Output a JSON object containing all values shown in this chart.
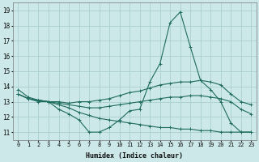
{
  "bg_color": "#cce8e8",
  "grid_color": "#aacfcf",
  "line_color": "#1e6b5e",
  "xlabel": "Humidex (Indice chaleur)",
  "ylim": [
    10.5,
    19.5
  ],
  "xlim": [
    -0.5,
    23.5
  ],
  "yticks": [
    11,
    12,
    13,
    14,
    15,
    16,
    17,
    18,
    19
  ],
  "xticks": [
    0,
    1,
    2,
    3,
    4,
    5,
    6,
    7,
    8,
    9,
    10,
    11,
    12,
    13,
    14,
    15,
    16,
    17,
    18,
    19,
    20,
    21,
    22,
    23
  ],
  "series": [
    {
      "x": [
        0,
        1,
        2,
        3,
        4,
        5,
        6,
        7,
        8,
        9,
        10,
        11,
        12,
        13,
        14,
        15,
        16,
        17,
        18,
        19,
        20,
        21,
        22,
        23
      ],
      "y": [
        13.8,
        13.3,
        13.1,
        13.0,
        12.5,
        12.2,
        11.8,
        11.0,
        11.0,
        11.3,
        11.8,
        12.4,
        12.5,
        14.3,
        15.5,
        18.2,
        18.9,
        16.6,
        14.4,
        13.8,
        13.0,
        11.6,
        11.0,
        11.0
      ]
    },
    {
      "x": [
        0,
        1,
        2,
        3,
        4,
        5,
        6,
        7,
        8,
        9,
        10,
        11,
        12,
        13,
        14,
        15,
        16,
        17,
        18,
        19,
        20,
        21,
        22,
        23
      ],
      "y": [
        13.5,
        13.2,
        13.1,
        13.0,
        13.0,
        12.9,
        13.0,
        13.0,
        13.1,
        13.2,
        13.4,
        13.6,
        13.7,
        13.9,
        14.1,
        14.2,
        14.3,
        14.3,
        14.4,
        14.3,
        14.1,
        13.5,
        13.0,
        12.8
      ]
    },
    {
      "x": [
        0,
        1,
        2,
        3,
        4,
        5,
        6,
        7,
        8,
        9,
        10,
        11,
        12,
        13,
        14,
        15,
        16,
        17,
        18,
        19,
        20,
        21,
        22,
        23
      ],
      "y": [
        13.5,
        13.2,
        13.1,
        13.0,
        12.9,
        12.8,
        12.7,
        12.6,
        12.6,
        12.7,
        12.8,
        12.9,
        13.0,
        13.1,
        13.2,
        13.3,
        13.3,
        13.4,
        13.4,
        13.3,
        13.2,
        13.0,
        12.5,
        12.2
      ]
    },
    {
      "x": [
        0,
        1,
        2,
        3,
        4,
        5,
        6,
        7,
        8,
        9,
        10,
        11,
        12,
        13,
        14,
        15,
        16,
        17,
        18,
        19,
        20,
        21,
        22,
        23
      ],
      "y": [
        13.5,
        13.2,
        13.0,
        13.0,
        12.8,
        12.6,
        12.3,
        12.1,
        11.9,
        11.8,
        11.7,
        11.6,
        11.5,
        11.4,
        11.3,
        11.3,
        11.2,
        11.2,
        11.1,
        11.1,
        11.0,
        11.0,
        11.0,
        11.0
      ]
    }
  ]
}
